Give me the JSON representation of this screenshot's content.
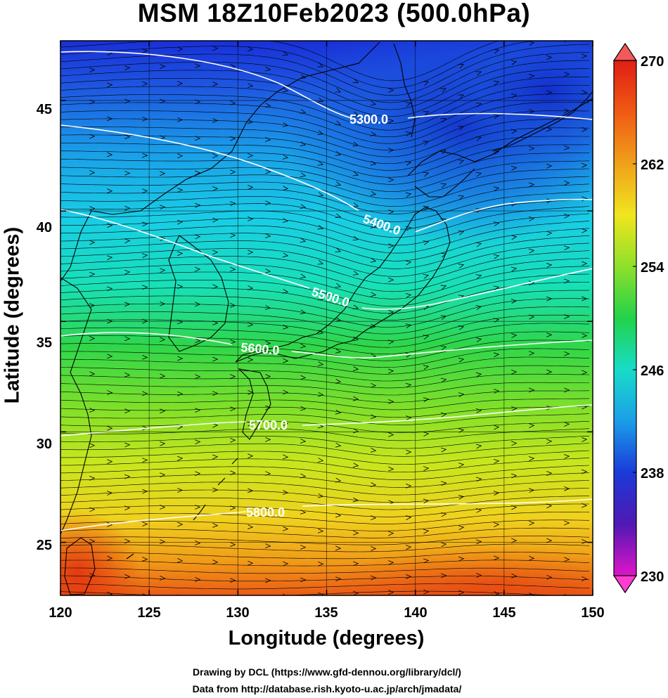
{
  "title": "MSM 18Z10Feb2023 (500.0hPa)",
  "xlabel": "Longitude (degrees)",
  "ylabel": "Latitude  (degrees)",
  "x_ticks": [
    "120",
    "125",
    "130",
    "135",
    "140",
    "145",
    "150"
  ],
  "y_ticks": [
    "25",
    "30",
    "35",
    "40",
    "45"
  ],
  "colorbar_ticks": [
    "270",
    "262",
    "254",
    "246",
    "238",
    "230"
  ],
  "contour_labels": [
    "5300.0",
    "5400.0",
    "5500.0",
    "5600.0",
    "5700.0",
    "5800.0"
  ],
  "credit_line1": "Drawing by DCL (https://www.gfd-dennou.org/library/dcl/)",
  "credit_line2": "Data from http://database.rish.kyoto-u.ac.jp/arch/jmadata/",
  "map_data": {
    "lon_range": [
      120,
      150
    ],
    "lat_range": [
      22.6,
      47.7
    ],
    "temperature_range": [
      230,
      270
    ],
    "colors": {
      "cold": "#1a1fd6",
      "cyan": "#19c8f0",
      "green": "#2fd32f",
      "yellow": "#f0e61e",
      "warm": "#f07a14",
      "hot": "#e02814",
      "contour": "#ffffff"
    }
  }
}
